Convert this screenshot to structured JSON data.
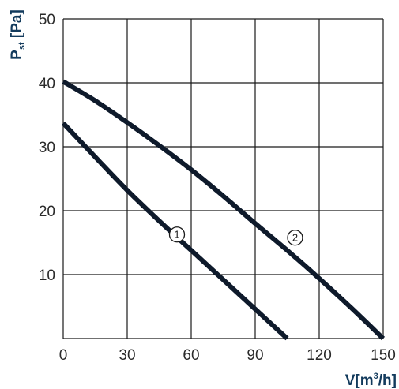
{
  "chart_data": {
    "type": "line",
    "xlabel": {
      "base": "V[m",
      "sup": "3",
      "end": "/h]"
    },
    "ylabel": {
      "base": "P",
      "sub": "st",
      "end": " [Pa]"
    },
    "xlim": [
      0,
      150
    ],
    "ylim": [
      0,
      50
    ],
    "x_ticks": [
      0,
      30,
      60,
      90,
      120,
      150
    ],
    "y_ticks": [
      0,
      10,
      20,
      30,
      40,
      50
    ],
    "x_tick_labels": [
      "0",
      "30",
      "60",
      "90",
      "120",
      "150"
    ],
    "y_tick_labels": [
      "",
      "10",
      "20",
      "30",
      "40",
      "50"
    ],
    "grid": true,
    "series": [
      {
        "name": "1",
        "x": [
          0,
          15,
          30,
          45,
          60,
          75,
          90,
          105
        ],
        "y": [
          33.7,
          28.4,
          23.2,
          18.4,
          13.8,
          9.2,
          4.6,
          0
        ]
      },
      {
        "name": "2",
        "x": [
          0,
          15,
          30,
          45,
          60,
          75,
          90,
          105,
          120,
          135,
          150
        ],
        "y": [
          40.2,
          37.2,
          33.8,
          30.2,
          26.4,
          22.3,
          18.0,
          13.8,
          9.4,
          4.8,
          0
        ]
      }
    ]
  }
}
